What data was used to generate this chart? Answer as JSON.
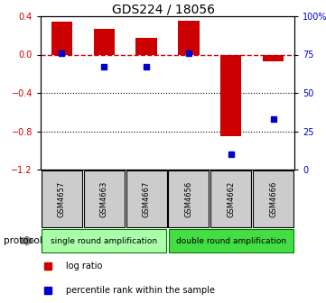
{
  "title": "GDS224 / 18056",
  "samples": [
    "GSM4657",
    "GSM4663",
    "GSM4667",
    "GSM4656",
    "GSM4662",
    "GSM4666"
  ],
  "log_ratio": [
    0.34,
    0.27,
    0.17,
    0.35,
    -0.85,
    -0.07
  ],
  "percentile_rank": [
    76,
    67,
    67,
    76,
    10,
    33
  ],
  "ylim_left": [
    -1.2,
    0.4
  ],
  "ylim_right": [
    0,
    100
  ],
  "yticks_left": [
    0.4,
    0,
    -0.4,
    -0.8,
    -1.2
  ],
  "yticks_right": [
    100,
    75,
    50,
    25,
    0
  ],
  "protocol_groups": [
    {
      "label": "single round amplification",
      "n_samples": 3,
      "color": "#AAFFAA"
    },
    {
      "label": "double round amplification",
      "n_samples": 3,
      "color": "#44DD44"
    }
  ],
  "bar_color": "#CC0000",
  "dot_color": "#0000CC",
  "dashed_line_color": "#CC0000",
  "dotted_line_color": "#000000",
  "sample_box_color": "#CCCCCC",
  "protocol_label": "protocol",
  "legend_log_ratio": "log ratio",
  "legend_percentile": "percentile rank within the sample",
  "title_fontsize": 10,
  "tick_fontsize": 7,
  "sample_fontsize": 6,
  "prot_fontsize": 6.5,
  "legend_fontsize": 7
}
